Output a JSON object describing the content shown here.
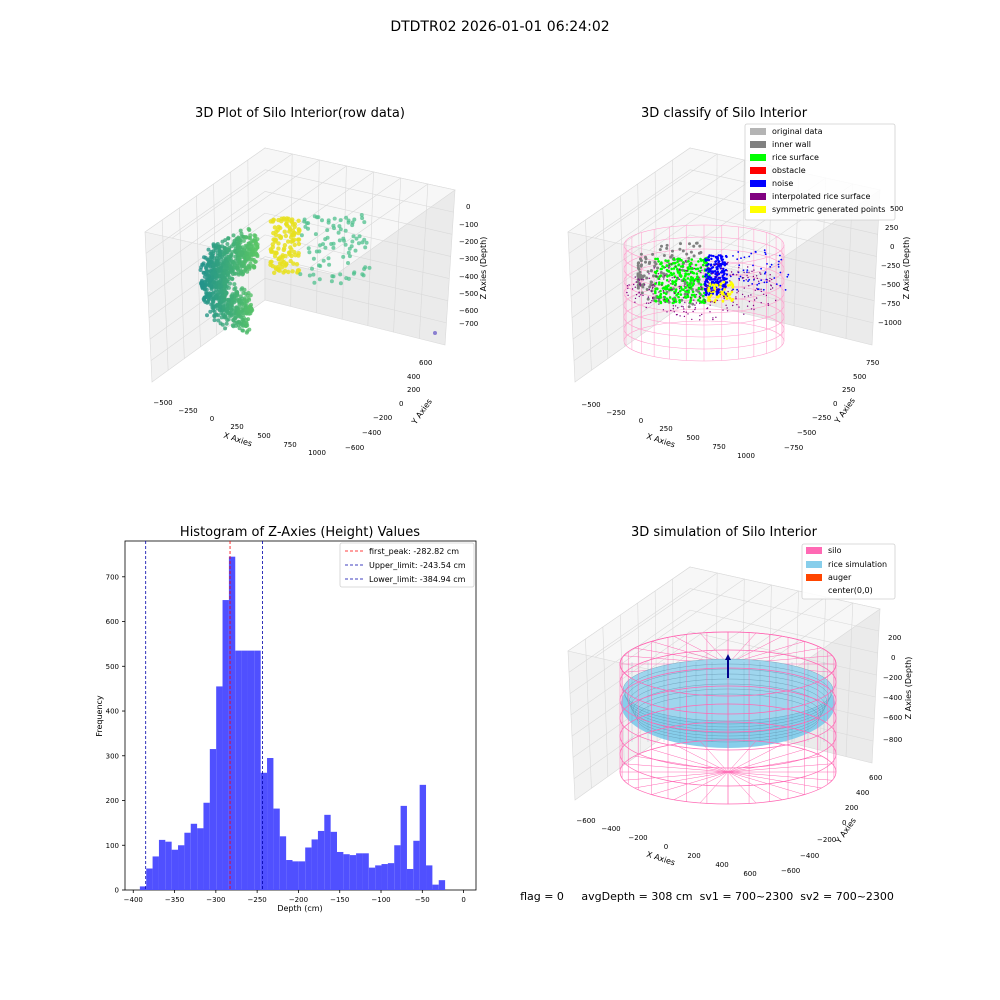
{
  "figure": {
    "suptitle": "DTDTR02 2026-01-01 06:24:02",
    "status_line": "flag = 0     avgDepth = 308 cm  sv1 = 700~2300  sv2 = 700~2300"
  },
  "panels": {
    "raw": {
      "title": "3D Plot of Silo Interior(row data)",
      "xlabel": "X Axies",
      "ylabel": "Y Axies",
      "zlabel": "Z Axies (Depth)",
      "xticks": [
        "−500",
        "−250",
        "0",
        "250",
        "500",
        "750",
        "1000"
      ],
      "yticks": [
        "−600",
        "−400",
        "−200",
        "0",
        "200",
        "400",
        "600"
      ],
      "zticks": [
        "0",
        "−100",
        "−200",
        "−300",
        "−400",
        "−500",
        "−600",
        "−700"
      ]
    },
    "classify": {
      "title": "3D classify of Silo Interior",
      "xlabel": "X Axies",
      "ylabel": "Y Axies",
      "zlabel": "Z Axies (Depth)",
      "xticks": [
        "−500",
        "−250",
        "0",
        "250",
        "500",
        "750",
        "1000"
      ],
      "yticks": [
        "−750",
        "−500",
        "−250",
        "0",
        "250",
        "500",
        "750"
      ],
      "zticks": [
        "500",
        "250",
        "0",
        "−250",
        "−500",
        "−750",
        "−1000"
      ],
      "legend": [
        {
          "label": "original data",
          "color": "#b4b4b4"
        },
        {
          "label": "inner wall",
          "color": "#808080"
        },
        {
          "label": "rice surface",
          "color": "#00ff00"
        },
        {
          "label": "obstacle",
          "color": "#ff0000"
        },
        {
          "label": "noise",
          "color": "#0000ff"
        },
        {
          "label": "interpolated rice surface",
          "color": "#800080"
        },
        {
          "label": "symmetric generated points",
          "color": "#ffff00"
        }
      ]
    },
    "simulation": {
      "title": "3D simulation of Silo Interior",
      "xlabel": "X Axies",
      "ylabel": "Y Axies",
      "zlabel": "Z Axies (Depth)",
      "xticks": [
        "−600",
        "−400",
        "−200",
        "0",
        "200",
        "400",
        "600"
      ],
      "yticks": [
        "−600",
        "−400",
        "−200",
        "0",
        "200",
        "400",
        "600"
      ],
      "zticks": [
        "200",
        "0",
        "−200",
        "−400",
        "−600",
        "−800"
      ],
      "legend": [
        {
          "label": "silo",
          "color": "#ff69b4"
        },
        {
          "label": "rice simulation",
          "color": "#87ceeb"
        },
        {
          "label": "auger",
          "color": "#ff4500"
        },
        {
          "label": "center(0,0)",
          "color": ""
        }
      ]
    }
  },
  "colors": {
    "hist_bar": "#4c4cff",
    "peak_line": "#ff0000",
    "limit_line": "#0000aa",
    "pane": "#f2f2f2",
    "grid": "#d9d9d9"
  },
  "chart_data": {
    "type": "bar",
    "title": "Histogram of Z-Axies (Height) Values",
    "xlabel": "Depth (cm)",
    "ylabel": "Frequency",
    "xlim": [
      -410,
      15
    ],
    "ylim": [
      0,
      780
    ],
    "xticks": [
      -400,
      -350,
      -300,
      -250,
      -200,
      -150,
      -100,
      -50,
      0
    ],
    "yticks": [
      0,
      100,
      200,
      300,
      400,
      500,
      600,
      700
    ],
    "bin_width": 7.7,
    "bin_start": -392,
    "values": [
      8,
      48,
      75,
      112,
      108,
      90,
      100,
      128,
      148,
      138,
      195,
      315,
      455,
      648,
      745,
      535,
      535,
      535,
      535,
      262,
      295,
      182,
      120,
      67,
      64,
      64,
      95,
      113,
      132,
      168,
      130,
      85,
      80,
      78,
      82,
      82,
      50,
      55,
      58,
      60,
      100,
      188,
      47,
      110,
      235,
      55,
      12,
      22
    ],
    "vlines": [
      {
        "x": -282.82,
        "label": "first_peak: -282.82 cm",
        "color": "#ff0000"
      },
      {
        "x": -243.54,
        "label": "Upper_limit: -243.54 cm",
        "color": "#0000aa"
      },
      {
        "x": -384.94,
        "label": "Lower_limit: -384.94 cm",
        "color": "#0000aa"
      }
    ],
    "legend_position": "upper right"
  }
}
